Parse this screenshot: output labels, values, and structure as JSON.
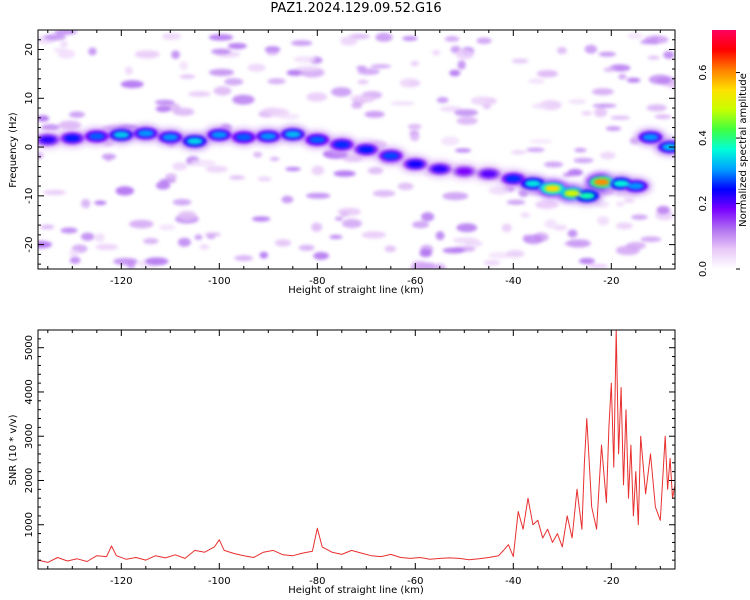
{
  "page": {
    "title": "PAZ1.2024.129.09.52.G16"
  },
  "chart_data": [
    {
      "type": "heatmap",
      "title": "",
      "xlabel": "Height of straight line (km)",
      "ylabel": "Frequency (Hz)",
      "xlim": [
        -137,
        -7
      ],
      "ylim": [
        -25,
        24
      ],
      "x_ticks": [
        -120,
        -100,
        -80,
        -60,
        -40,
        -20
      ],
      "y_ticks": [
        -20,
        -10,
        0,
        10,
        20
      ],
      "grid": false,
      "colorbar": {
        "label": "Normalized spectral amplitude",
        "range": [
          0.0,
          0.73
        ],
        "ticks": [
          "0.0",
          "0.2",
          "0.4",
          "0.6"
        ],
        "tick_values": [
          0.0,
          0.2,
          0.4,
          0.6
        ],
        "colors": [
          "#ffffff",
          "#e8c8f8",
          "#b070f0",
          "#7a00ff",
          "#0000ff",
          "#00a0ff",
          "#00ffd8",
          "#40ff40",
          "#c8ff00",
          "#ffe000",
          "#ff8000",
          "#ff0000",
          "#ff0060"
        ]
      },
      "ridge": [
        {
          "x": -135,
          "y": 1.5,
          "v": 0.22
        },
        {
          "x": -130,
          "y": 1.8,
          "v": 0.25
        },
        {
          "x": -125,
          "y": 2.2,
          "v": 0.28
        },
        {
          "x": -120,
          "y": 2.5,
          "v": 0.33
        },
        {
          "x": -115,
          "y": 2.8,
          "v": 0.3
        },
        {
          "x": -110,
          "y": 2.0,
          "v": 0.3
        },
        {
          "x": -105,
          "y": 1.2,
          "v": 0.34
        },
        {
          "x": -100,
          "y": 2.5,
          "v": 0.3
        },
        {
          "x": -95,
          "y": 2.0,
          "v": 0.28
        },
        {
          "x": -90,
          "y": 2.2,
          "v": 0.3
        },
        {
          "x": -85,
          "y": 2.6,
          "v": 0.32
        },
        {
          "x": -80,
          "y": 1.5,
          "v": 0.28
        },
        {
          "x": -75,
          "y": 0.5,
          "v": 0.26
        },
        {
          "x": -70,
          "y": -0.5,
          "v": 0.25
        },
        {
          "x": -65,
          "y": -1.8,
          "v": 0.27
        },
        {
          "x": -60,
          "y": -3.5,
          "v": 0.24
        },
        {
          "x": -55,
          "y": -4.5,
          "v": 0.22
        },
        {
          "x": -50,
          "y": -5.0,
          "v": 0.18
        },
        {
          "x": -45,
          "y": -5.5,
          "v": 0.2
        },
        {
          "x": -40,
          "y": -6.5,
          "v": 0.26
        },
        {
          "x": -36,
          "y": -7.5,
          "v": 0.35
        },
        {
          "x": -32,
          "y": -8.5,
          "v": 0.55
        },
        {
          "x": -28,
          "y": -9.5,
          "v": 0.5
        },
        {
          "x": -25,
          "y": -10.0,
          "v": 0.38
        },
        {
          "x": -22,
          "y": -7.2,
          "v": 0.6
        },
        {
          "x": -18,
          "y": -7.5,
          "v": 0.36
        },
        {
          "x": -15,
          "y": -8.0,
          "v": 0.3
        },
        {
          "x": -12,
          "y": 2.0,
          "v": 0.3
        },
        {
          "x": -8,
          "y": 0.0,
          "v": 0.32
        }
      ]
    },
    {
      "type": "line",
      "title": "",
      "xlabel": "Height of straight line (km)",
      "ylabel": "SNR (10 * v/v)",
      "xlim": [
        -137,
        -7
      ],
      "ylim": [
        0,
        5400
      ],
      "x_ticks": [
        -120,
        -100,
        -80,
        -60,
        -40,
        -20
      ],
      "y_ticks": [
        1000,
        2000,
        3000,
        4000,
        5000
      ],
      "grid": false,
      "color": "#e83030",
      "x": [
        -137,
        -135,
        -133,
        -131,
        -129,
        -127,
        -125,
        -123,
        -122,
        -121,
        -119,
        -117,
        -115,
        -113,
        -111,
        -109,
        -107,
        -105,
        -103,
        -101,
        -100,
        -99,
        -97,
        -95,
        -93,
        -91,
        -89,
        -87,
        -85,
        -83,
        -81,
        -80,
        -79,
        -77,
        -75,
        -73,
        -71,
        -69,
        -67,
        -65,
        -63,
        -61,
        -59,
        -57,
        -55,
        -53,
        -51,
        -49,
        -47,
        -45,
        -43,
        -42,
        -41,
        -40,
        -39,
        -38,
        -37,
        -36,
        -35,
        -34,
        -33,
        -32,
        -31,
        -30,
        -29,
        -28,
        -27,
        -26,
        -25.5,
        -25,
        -24,
        -23,
        -22,
        -21,
        -20.5,
        -20,
        -19.5,
        -19,
        -18.5,
        -18,
        -17.5,
        -17,
        -16.5,
        -16,
        -15.5,
        -15,
        -14.5,
        -14,
        -13,
        -12,
        -11,
        -10,
        -9,
        -8.5,
        -8,
        -7.5,
        -7
      ],
      "y": [
        200,
        150,
        260,
        180,
        230,
        170,
        300,
        280,
        520,
        300,
        220,
        260,
        200,
        300,
        250,
        320,
        240,
        420,
        380,
        500,
        660,
        420,
        350,
        300,
        260,
        380,
        420,
        320,
        300,
        360,
        400,
        920,
        500,
        380,
        330,
        420,
        360,
        300,
        280,
        330,
        260,
        240,
        260,
        220,
        240,
        250,
        240,
        210,
        230,
        260,
        300,
        420,
        550,
        280,
        1300,
        900,
        1600,
        1000,
        1100,
        700,
        900,
        600,
        800,
        500,
        1200,
        700,
        1800,
        900,
        2400,
        3400,
        1400,
        900,
        2800,
        1500,
        3200,
        4200,
        2300,
        5400,
        2600,
        4100,
        1900,
        3600,
        1600,
        2800,
        1200,
        2200,
        1000,
        3000,
        1700,
        2600,
        1400,
        1100,
        3000,
        1800,
        2500,
        1600,
        1900
      ]
    }
  ]
}
